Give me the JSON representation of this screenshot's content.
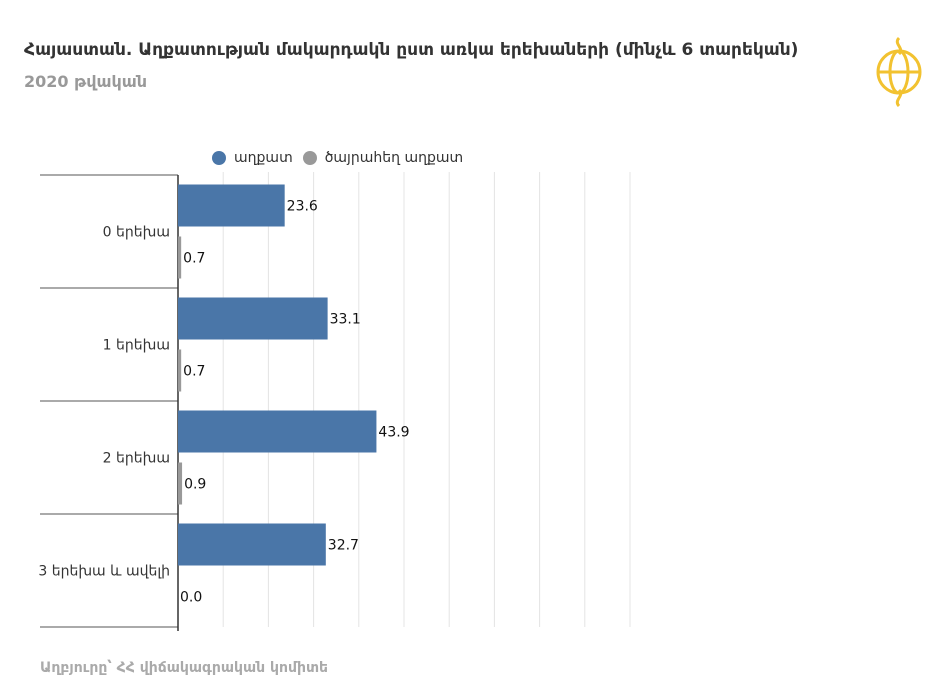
{
  "header": {
    "title": "Հայաստան. Աղքատության մակարդակն ըստ առկա երեխաների (մինչև 6 տարեկան)",
    "subtitle": "2020 թվական"
  },
  "logo": {
    "icon": "globe-logo-icon",
    "color": "#F2C230"
  },
  "footer": {
    "source": "Աղբյուրը՝ ՀՀ վիճակագրական կոմիտե"
  },
  "chart_data": {
    "type": "bar",
    "orientation": "horizontal",
    "categories": [
      "0 երեխա",
      "1 երեխա",
      "2 երեխա",
      "3 երեխա և ավելի"
    ],
    "series": [
      {
        "name": "աղքատ",
        "values": [
          23.6,
          33.1,
          43.9,
          32.7
        ],
        "color": "#4A76A8"
      },
      {
        "name": "ծայրահեղ աղքատ",
        "values": [
          0.7,
          0.7,
          0.9,
          0.0
        ],
        "color": "#999999"
      }
    ],
    "xlim": [
      0,
      100
    ],
    "grid": true,
    "legend": "top"
  }
}
